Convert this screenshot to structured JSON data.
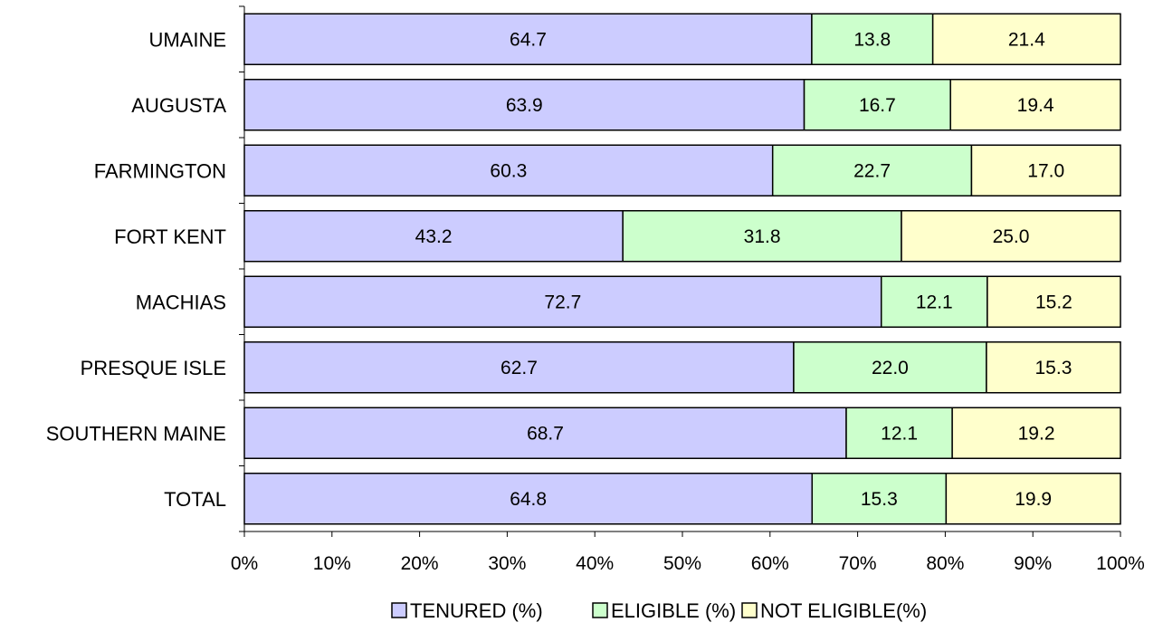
{
  "chart_data": {
    "type": "bar",
    "orientation": "horizontal",
    "stacked": "percent",
    "categories": [
      "UMAINE",
      "AUGUSTA",
      "FARMINGTON",
      "FORT KENT",
      "MACHIAS",
      "PRESQUE ISLE",
      "SOUTHERN MAINE",
      "TOTAL"
    ],
    "series": [
      {
        "name": "TENURED (%)",
        "color": "#ccccff",
        "values": [
          64.7,
          63.9,
          60.3,
          43.2,
          72.7,
          62.7,
          68.7,
          64.8
        ],
        "labels": [
          "64.7",
          "63.9",
          "60.3",
          "43.2",
          "72.7",
          "62.7",
          "68.7",
          "64.8"
        ]
      },
      {
        "name": "ELIGIBLE (%)",
        "color": "#ccffcc",
        "values": [
          13.8,
          16.7,
          22.7,
          31.8,
          12.1,
          22.0,
          12.1,
          15.3
        ],
        "labels": [
          "13.8",
          "16.7",
          "22.7",
          "31.8",
          "12.1",
          "22.0",
          "12.1",
          "15.3"
        ]
      },
      {
        "name": "NOT ELIGIBLE(%)",
        "color": "#ffffcc",
        "values": [
          21.4,
          19.4,
          17.0,
          25.0,
          15.2,
          15.3,
          19.2,
          19.9
        ],
        "labels": [
          "21.4",
          "19.4",
          "17.0",
          "25.0",
          "15.2",
          "15.3",
          "19.2",
          "19.9"
        ]
      }
    ],
    "x_ticks": [
      "0%",
      "10%",
      "20%",
      "30%",
      "40%",
      "50%",
      "60%",
      "70%",
      "80%",
      "90%",
      "100%"
    ],
    "xlim": [
      0,
      100
    ],
    "title": "",
    "xlabel": "",
    "ylabel": "",
    "grid": false,
    "legend_position": "bottom"
  }
}
